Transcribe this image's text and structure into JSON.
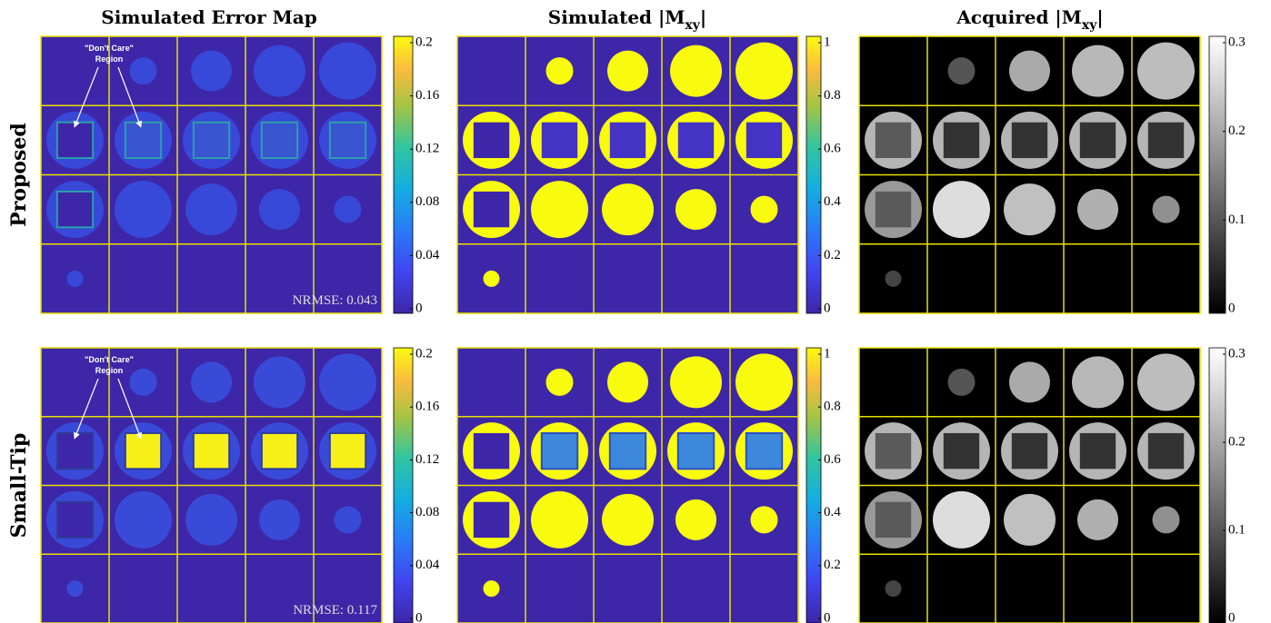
{
  "columns": [
    {
      "title": {
        "text": "Simulated Error Map"
      },
      "colorbar_ticks": [
        "0.2",
        "0.16",
        "0.12",
        "0.08",
        "0.04",
        "0"
      ]
    },
    {
      "title": {
        "text": "Simulated |M",
        "sub": "xy",
        "end": "|"
      },
      "colorbar_ticks": [
        "1",
        "0.8",
        "0.6",
        "0.4",
        "0.2",
        "0"
      ]
    },
    {
      "title": {
        "text": "Acquired |M",
        "sub": "xy",
        "end": "|"
      },
      "colorbar_ticks": [
        "0.3",
        "0.2",
        "0.1",
        "0"
      ]
    }
  ],
  "rows": [
    {
      "label": "Proposed",
      "annotation": [
        "\"Don't Care\"",
        "Region"
      ],
      "nrmse": "NRMSE: 0.043"
    },
    {
      "label": "Small-Tip",
      "annotation": [
        "\"Don't Care\"",
        "Region"
      ],
      "nrmse": "NRMSE: 0.117"
    }
  ]
}
